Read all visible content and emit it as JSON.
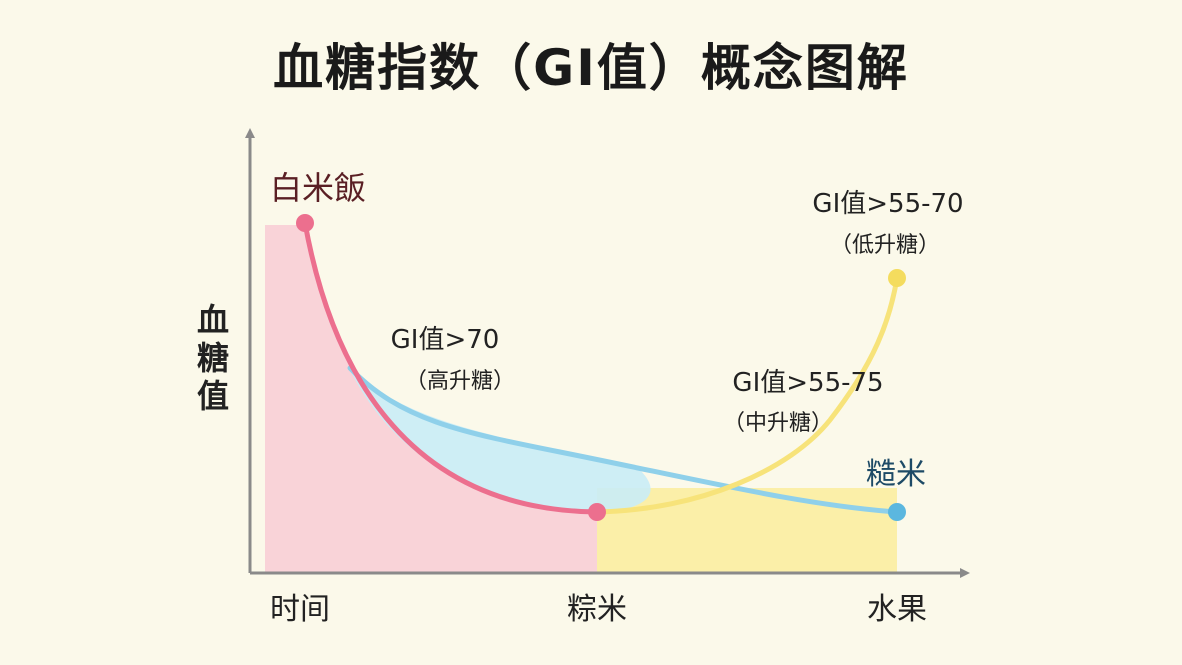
{
  "title": "血糖指数（GI值）概念图解",
  "y_axis_label": [
    "血",
    "糖",
    "值"
  ],
  "x_axis_labels": {
    "left": "时间",
    "middle": "粽米",
    "right": "水果"
  },
  "points": {
    "white_rice": "白米飯",
    "brown_rice": "糙米"
  },
  "annotations": {
    "high": {
      "line1": "GI值>70",
      "line2": "（高升糖）"
    },
    "medium": {
      "line1": "GI值>55-75",
      "line2": "（中升糖）"
    },
    "low": {
      "line1": "GI值>55-70",
      "line2": "（低升糖）"
    }
  },
  "colors": {
    "background": "#fbf9ea",
    "pink_curve": "#ec6f8e",
    "pink_fill": "#f9d3d8",
    "blue_curve": "#8fd0ea",
    "blue_fill": "#c9ecf6",
    "yellow_curve": "#f7e37a",
    "yellow_fill": "#fbefa8",
    "axis": "#8a8a8a",
    "white_rice_label": "#5a1f24",
    "brown_rice_label": "#1d4a66"
  }
}
